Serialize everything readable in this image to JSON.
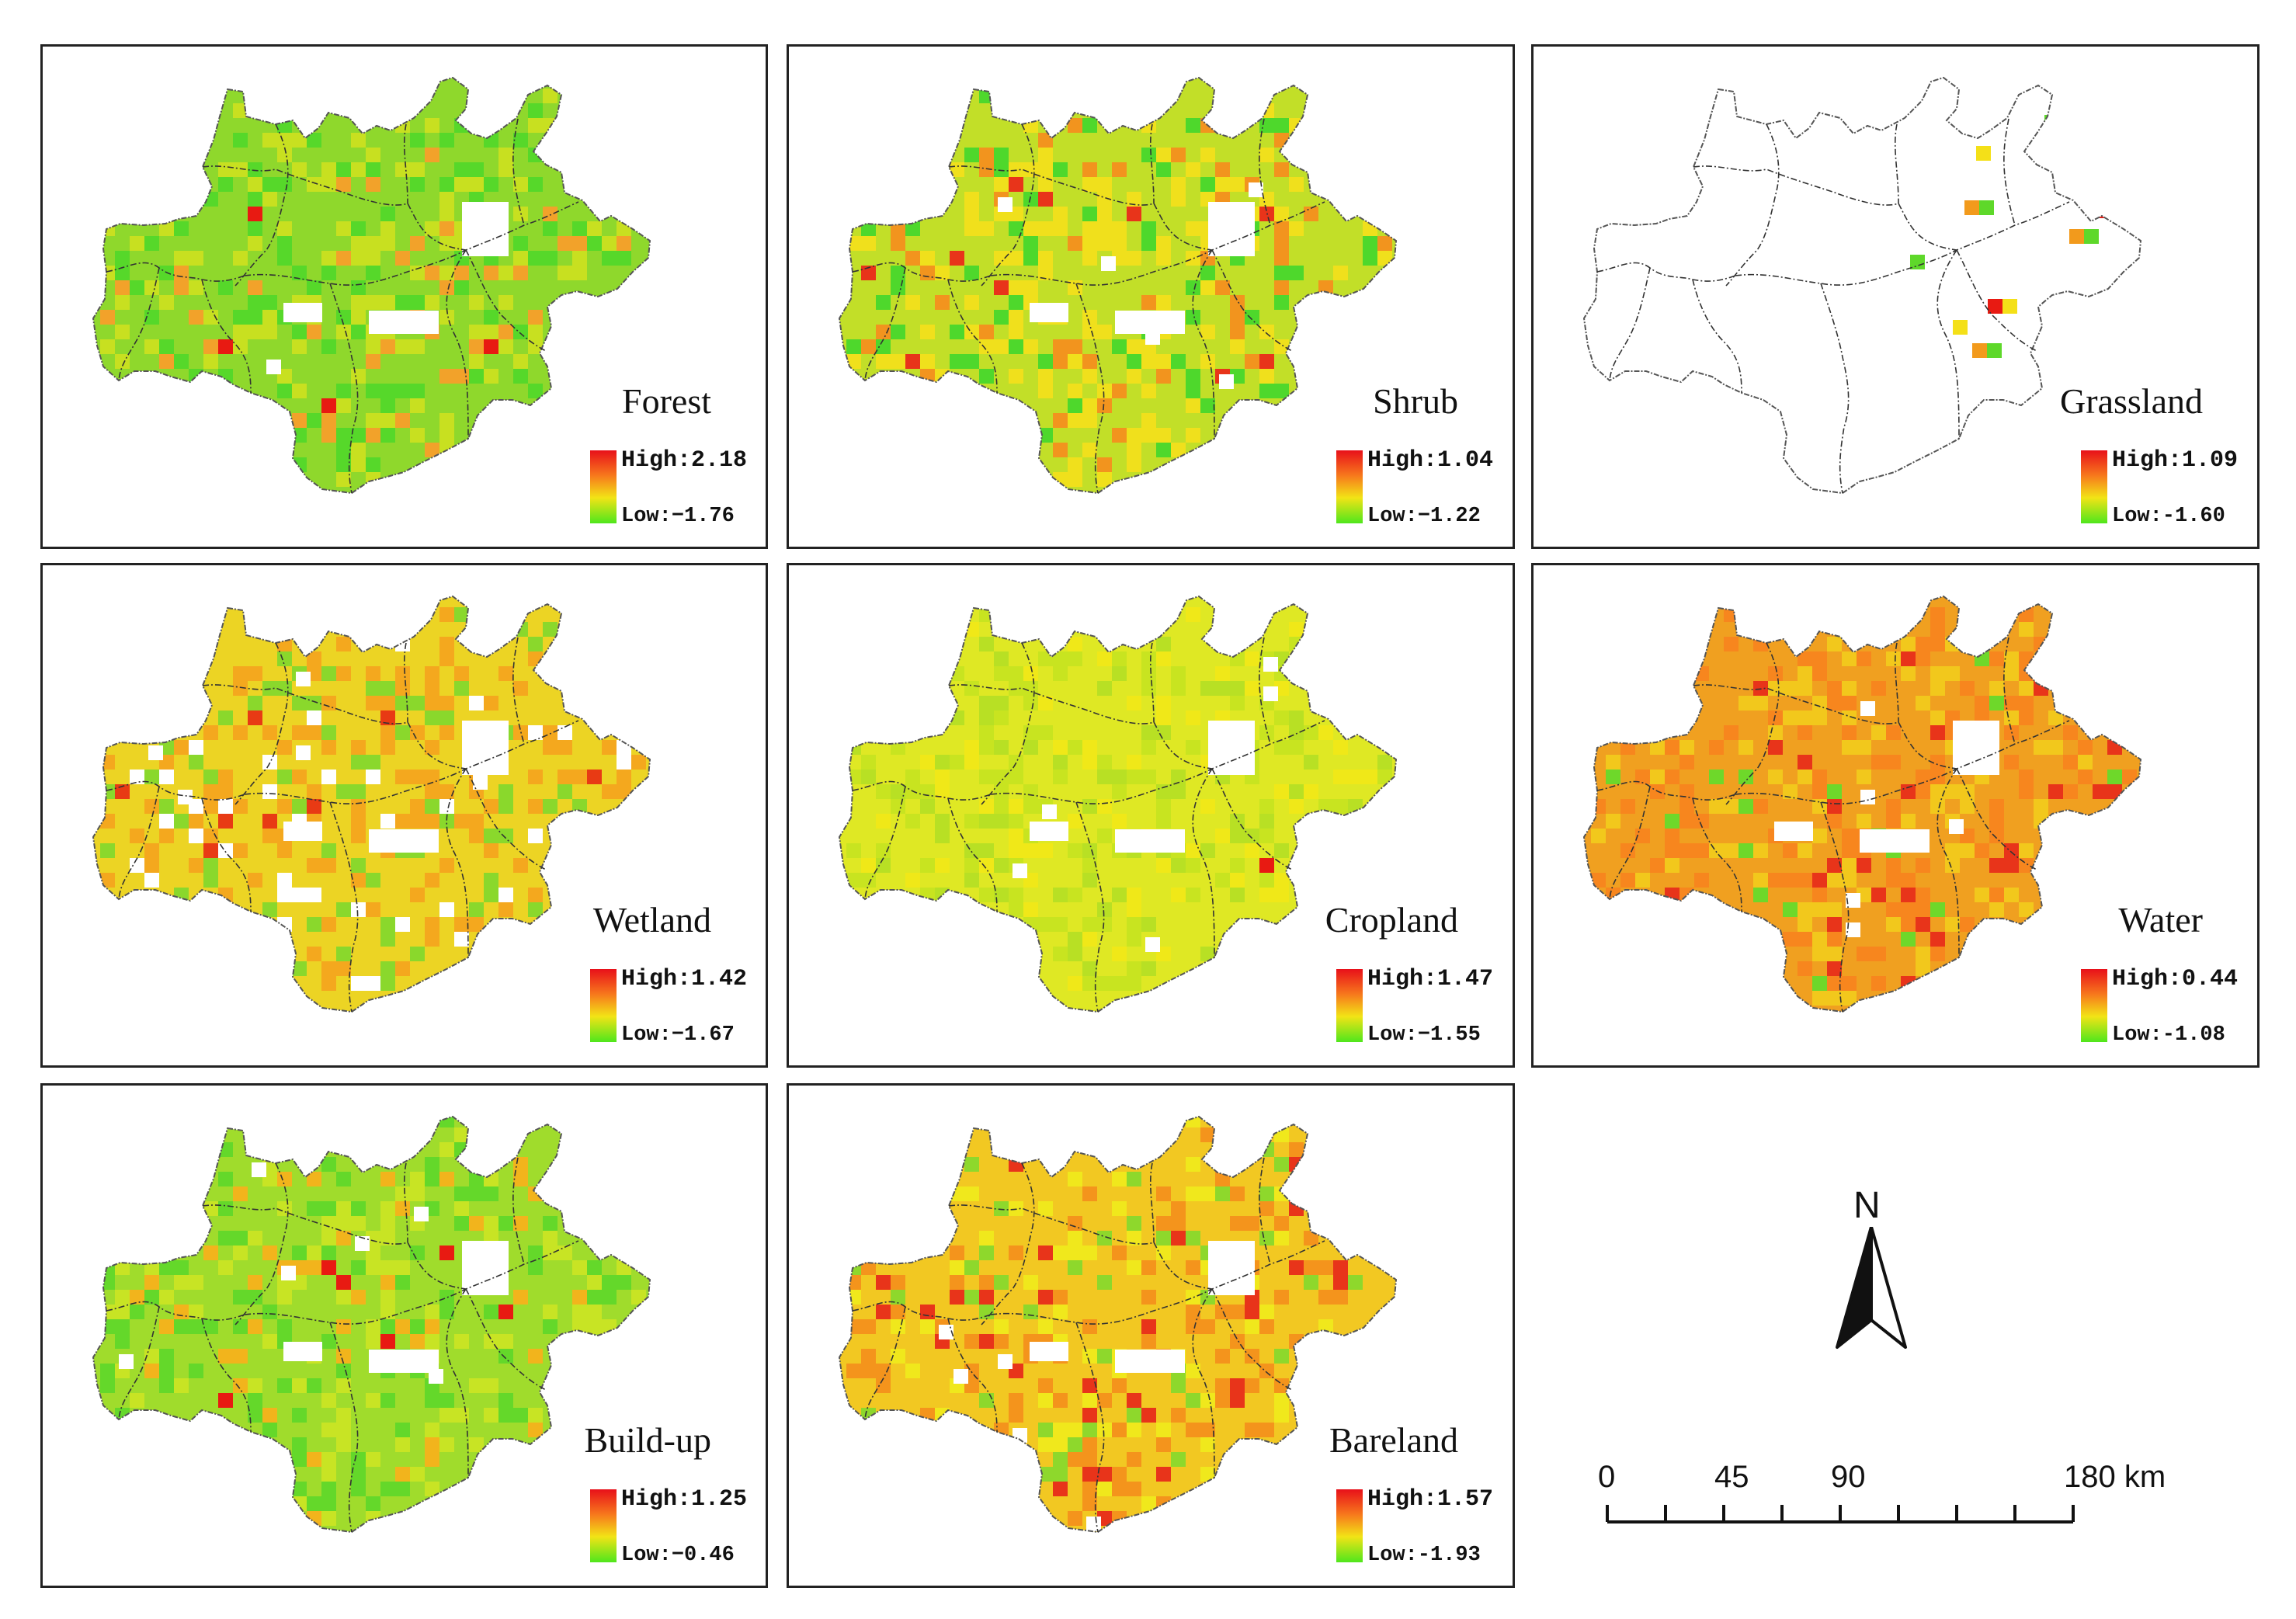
{
  "panels": [
    {
      "id": "forest",
      "title": "Forest",
      "high": "High:2.18",
      "low": "Low:−1.76",
      "base": "#8fd82c",
      "hot": [
        "#e81a12",
        "#c8e020",
        "#56d82a",
        "#f2a22a"
      ],
      "weights": [
        0.02,
        0.45,
        0.35,
        0.18
      ],
      "mode": "full"
    },
    {
      "id": "shrub",
      "title": "Shrub",
      "high": "High:1.04",
      "low": "Low:−1.22",
      "base": "#c2df28",
      "hot": [
        "#e8341a",
        "#f0e01c",
        "#4ed82c",
        "#f2941e"
      ],
      "weights": [
        0.05,
        0.45,
        0.28,
        0.22
      ],
      "mode": "full"
    },
    {
      "id": "grassland",
      "title": "Grassland",
      "high": "High:1.09",
      "low": "Low:-1.60",
      "base": "#ffffff",
      "hot": [
        "#e81a12",
        "#f4e018",
        "#f29a1c",
        "#5ed82a"
      ],
      "weights": [
        0.2,
        0.45,
        0.2,
        0.15
      ],
      "mode": "outline"
    },
    {
      "id": "wetland",
      "title": "Wetland",
      "high": "High:1.42",
      "low": "Low:−1.67",
      "base": "#ecd424",
      "hot": [
        "#e83a14",
        "#f4a81e",
        "#8ad82c",
        "#ffffff"
      ],
      "weights": [
        0.06,
        0.5,
        0.3,
        0.14
      ],
      "mode": "full"
    },
    {
      "id": "cropland",
      "title": "Cropland",
      "high": "High:1.47",
      "low": "Low:−1.55",
      "base": "#dfe824",
      "hot": [
        "#e81a12",
        "#c8e420",
        "#b8e024",
        "#f0e818"
      ],
      "weights": [
        0.02,
        0.4,
        0.3,
        0.28
      ],
      "mode": "full"
    },
    {
      "id": "water",
      "title": "Water",
      "high": "High:0.44",
      "low": "Low:-1.08",
      "base": "#f0a020",
      "hot": [
        "#e8341a",
        "#f2c81c",
        "#6ed82a",
        "#f7861e"
      ],
      "weights": [
        0.1,
        0.35,
        0.08,
        0.47
      ],
      "mode": "full"
    },
    {
      "id": "buildup",
      "title": "Build-up",
      "high": "High:1.25",
      "low": "Low:−0.46",
      "base": "#a0dc2c",
      "hot": [
        "#e81a12",
        "#c8e424",
        "#64d82a",
        "#f2b41c"
      ],
      "weights": [
        0.03,
        0.4,
        0.4,
        0.17
      ],
      "mode": "full"
    },
    {
      "id": "bareland",
      "title": "Bareland",
      "high": "High:1.57",
      "low": "Low:-1.93",
      "base": "#f2c822",
      "hot": [
        "#e8341a",
        "#f4941c",
        "#8ed82c",
        "#f0e81c"
      ],
      "weights": [
        0.12,
        0.38,
        0.18,
        0.32
      ],
      "mode": "full"
    }
  ],
  "north_arrow": {
    "letter": "N",
    "icon": "north-arrow-icon"
  },
  "scale_bar": {
    "labels": [
      "0",
      "45",
      "90",
      "180 km"
    ],
    "values": [
      0,
      45,
      90,
      180
    ],
    "max": 180
  }
}
